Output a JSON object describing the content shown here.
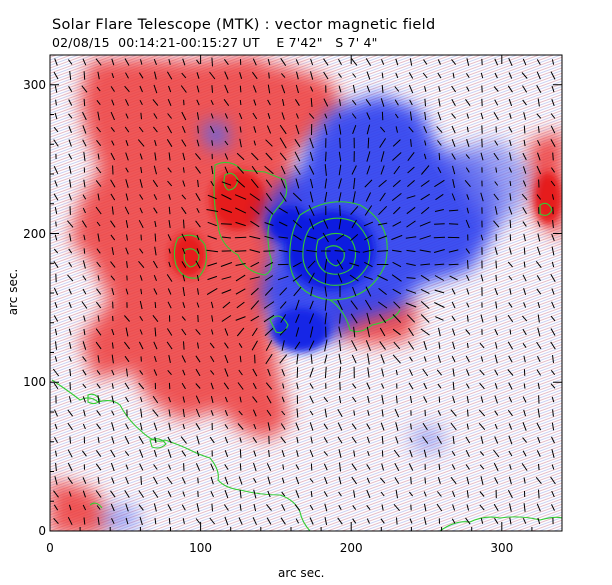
{
  "title": "Solar Flare Telescope (MTK) : vector magnetic field",
  "subtitle": {
    "date": "02/08/15",
    "time_range": "00:14:21-00:15:27 UT",
    "position_e": "E 7'42\"",
    "position_s": "S 7' 4\""
  },
  "axes": {
    "xlabel": "arc sec.",
    "ylabel": "arc sec.",
    "x_ticks": [
      "0",
      "100",
      "200",
      "300"
    ],
    "y_ticks": [
      "0",
      "100",
      "200",
      "300"
    ],
    "xlim": [
      0,
      340
    ],
    "ylim": [
      0,
      320
    ]
  },
  "colors": {
    "positive_polarity": "#ee3a3a",
    "negative_polarity": "#1a2ee8",
    "contour": "#33cc33",
    "vector": "#000000",
    "background": "#ffffff"
  }
}
